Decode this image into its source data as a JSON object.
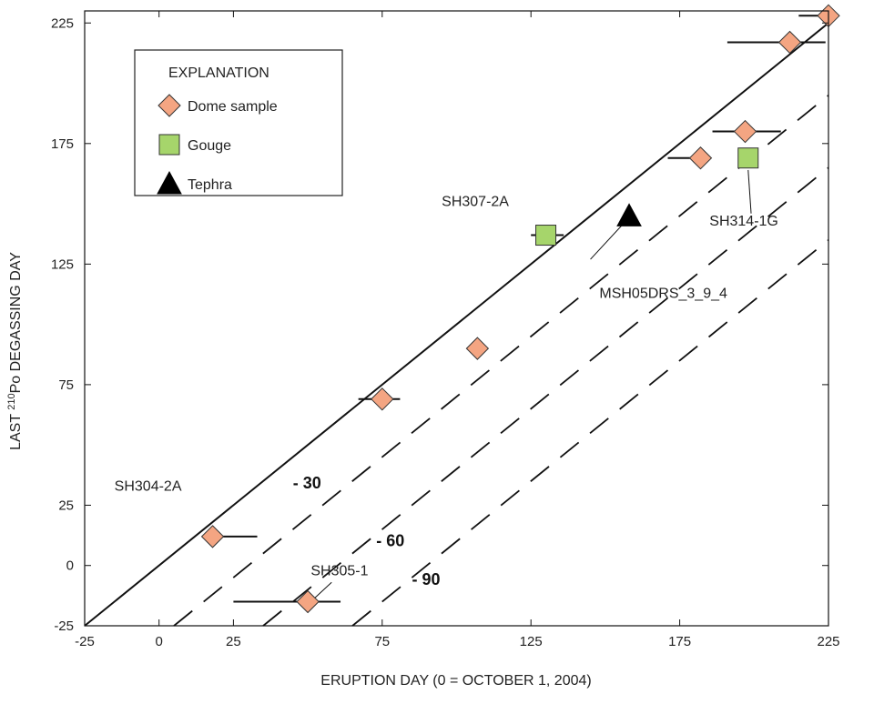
{
  "chart_data": {
    "type": "scatter",
    "xlabel": "ERUPTION DAY (0 = OCTOBER 1, 2004)",
    "ylabel_prefix": "LAST ",
    "ylabel_superscript": "210",
    "ylabel_suffix": "Po DEGASSING DAY",
    "xlim": [
      -25,
      225
    ],
    "ylim": [
      -25,
      230
    ],
    "x_ticks": [
      -25,
      0,
      25,
      75,
      125,
      175,
      225
    ],
    "y_ticks": [
      -25,
      0,
      25,
      75,
      125,
      175,
      225
    ],
    "legend": {
      "title": "EXPLANATION",
      "position": "top-left",
      "items": [
        {
          "label": "Dome sample",
          "marker": "diamond",
          "color": "#f4a582"
        },
        {
          "label": "Gouge",
          "marker": "square",
          "color": "#a6d56b"
        },
        {
          "label": "Tephra",
          "marker": "triangle",
          "color": "#000000"
        }
      ]
    },
    "reference_lines": [
      {
        "offset": 0,
        "style": "solid"
      },
      {
        "offset": -30,
        "style": "dashed",
        "label": "- 30",
        "label_at": [
          45,
          32
        ]
      },
      {
        "offset": -60,
        "style": "dashed",
        "label": "- 60",
        "label_at": [
          73,
          8
        ]
      },
      {
        "offset": -90,
        "style": "dashed",
        "label": "- 90",
        "label_at": [
          85,
          -8
        ]
      }
    ],
    "series": [
      {
        "name": "Dome sample",
        "marker": "diamond",
        "color": "#f4a582",
        "points": [
          {
            "x": 18,
            "y": 12,
            "xerr": [
              18,
              33
            ]
          },
          {
            "x": 50,
            "y": -15,
            "xerr": [
              25,
              61
            ]
          },
          {
            "x": 75,
            "y": 69,
            "xerr": [
              67,
              81
            ]
          },
          {
            "x": 107,
            "y": 90
          },
          {
            "x": 182,
            "y": 169,
            "xerr": [
              171,
              185
            ]
          },
          {
            "x": 197,
            "y": 180,
            "xerr": [
              186,
              209
            ]
          },
          {
            "x": 212,
            "y": 217,
            "xerr": [
              191,
              224
            ]
          },
          {
            "x": 225,
            "y": 228,
            "xerr": [
              215,
              227
            ]
          }
        ]
      },
      {
        "name": "Gouge",
        "marker": "square",
        "color": "#a6d56b",
        "points": [
          {
            "x": 130,
            "y": 137,
            "xerr": [
              125,
              136
            ]
          },
          {
            "x": 198,
            "y": 169
          }
        ]
      },
      {
        "name": "Tephra",
        "marker": "triangle",
        "color": "#000000",
        "points": [
          {
            "x": 158,
            "y": 145
          }
        ]
      }
    ],
    "annotations": [
      {
        "text": "SH304-2A",
        "at": [
          -15,
          31
        ],
        "leader": null
      },
      {
        "text": "SH305-1",
        "at": [
          51,
          -4
        ],
        "leader": [
          [
            58,
            -7
          ],
          [
            51,
            -15
          ]
        ]
      },
      {
        "text": "SH307-2A",
        "at": [
          95,
          149
        ],
        "leader": null
      },
      {
        "text": "MSH05DRS_3_9_4",
        "at": [
          148,
          111
        ],
        "leader": [
          [
            145,
            127
          ],
          [
            157,
            143
          ]
        ]
      },
      {
        "text": "SH314-1G",
        "at": [
          185,
          141
        ],
        "leader": [
          [
            199,
            146
          ],
          [
            198,
            164
          ]
        ]
      }
    ]
  }
}
